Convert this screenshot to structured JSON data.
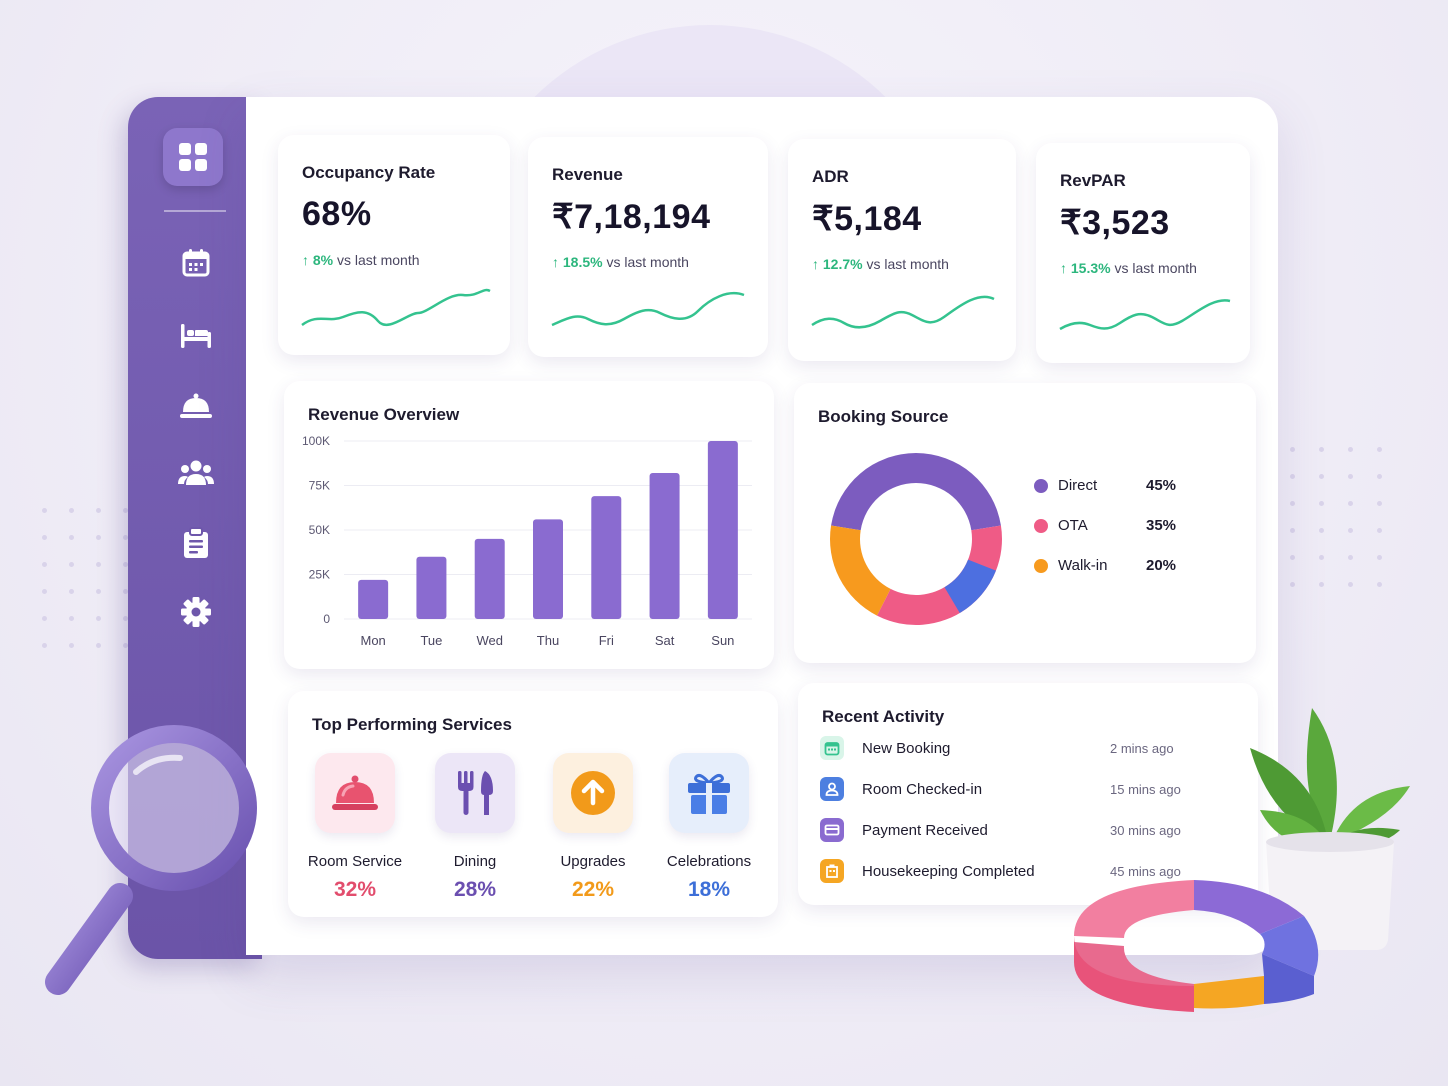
{
  "kpis": [
    {
      "title": "Occupancy Rate",
      "value": "68%",
      "delta": "8%",
      "delta_suffix": "vs last month"
    },
    {
      "title": "Revenue",
      "value": "₹7,18,194",
      "delta": "18.5%",
      "delta_suffix": "vs last month"
    },
    {
      "title": "ADR",
      "value": "₹5,184",
      "delta": "12.7%",
      "delta_suffix": "vs last month"
    },
    {
      "title": "RevPAR",
      "value": "₹3,523",
      "delta": "15.3%",
      "delta_suffix": "vs last month"
    }
  ],
  "sidebar": {
    "items": [
      {
        "icon": "calendar-icon"
      },
      {
        "icon": "bed-icon"
      },
      {
        "icon": "room-service-bell-icon"
      },
      {
        "icon": "guests-icon"
      },
      {
        "icon": "clipboard-icon"
      },
      {
        "icon": "settings-gear-icon"
      }
    ]
  },
  "revenue_overview": {
    "title": "Revenue Overview"
  },
  "booking_source": {
    "title": "Booking Source",
    "items": [
      {
        "label": "Direct",
        "pct": "45%",
        "color": "#7c5cbf"
      },
      {
        "label": "OTA",
        "pct": "35%",
        "color": "#ef5b86"
      },
      {
        "label": "Walk-in",
        "pct": "20%",
        "color": "#f79a1e"
      }
    ]
  },
  "top_services": {
    "title": "Top Performing Services",
    "items": [
      {
        "name": "Room Service",
        "pct": "32%",
        "color": "#e24d6d",
        "icon": "cloche-icon"
      },
      {
        "name": "Dining",
        "pct": "28%",
        "color": "#6b4fb0",
        "icon": "fork-knife-icon"
      },
      {
        "name": "Upgrades",
        "pct": "22%",
        "color": "#f29a1a",
        "icon": "arrow-up-icon"
      },
      {
        "name": "Celebrations",
        "pct": "18%",
        "color": "#3d6fd8",
        "icon": "gift-icon"
      }
    ]
  },
  "recent_activity": {
    "title": "Recent Activity",
    "items": [
      {
        "text": "New Booking",
        "time": "2 mins ago",
        "color": "#34c38f",
        "icon": "calendar-icon"
      },
      {
        "text": "Room Checked-in",
        "time": "15 mins ago",
        "color": "#4d7fe0",
        "icon": "user-icon"
      },
      {
        "text": "Payment Received",
        "time": "30 mins ago",
        "color": "#8a6bd0",
        "icon": "card-icon"
      },
      {
        "text": "Housekeeping Completed",
        "time": "45 mins ago",
        "color": "#f5a623",
        "icon": "building-icon"
      }
    ]
  },
  "chart_data": [
    {
      "type": "bar",
      "title": "Revenue Overview",
      "categories": [
        "Mon",
        "Tue",
        "Wed",
        "Thu",
        "Fri",
        "Sat",
        "Sun"
      ],
      "values": [
        22000,
        35000,
        45000,
        56000,
        69000,
        82000,
        100000
      ],
      "yticks": [
        "0",
        "25K",
        "50K",
        "75K",
        "100K"
      ],
      "ylim": [
        0,
        100000
      ],
      "grid": true,
      "color": "#8a6bd0"
    },
    {
      "type": "pie",
      "title": "Booking Source",
      "categories": [
        "Direct",
        "OTA",
        "Walk-in"
      ],
      "values": [
        45,
        35,
        20
      ],
      "legend": "right"
    }
  ]
}
